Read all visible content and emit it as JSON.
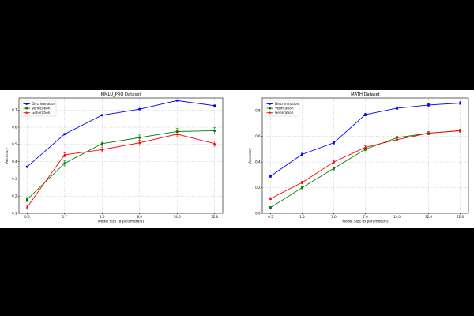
{
  "chart_data": [
    {
      "type": "line",
      "title": "MMLU_PRO Dataset",
      "xlabel": "Model Size (B parameters)",
      "ylabel": "Accuracy",
      "categories": [
        "0.6",
        "1.7",
        "4.0",
        "8.0",
        "14.0",
        "32.0"
      ],
      "ylim": [
        0.1,
        0.77
      ],
      "yticks": [
        "0.1",
        "0.2",
        "0.3",
        "0.4",
        "0.5",
        "0.6",
        "0.7"
      ],
      "grid": true,
      "legend": "top-left",
      "series": [
        {
          "name": "Discrimination",
          "color": "#0000ff",
          "marker": "circle",
          "values": [
            0.37,
            0.56,
            0.67,
            0.705,
            0.755,
            0.725
          ],
          "errors": [
            0.004,
            0.004,
            0.004,
            0.004,
            0.004,
            0.004
          ]
        },
        {
          "name": "Verification",
          "color": "#008000",
          "marker": "square",
          "values": [
            0.18,
            0.39,
            0.505,
            0.54,
            0.575,
            0.58
          ],
          "errors": [
            0.012,
            0.015,
            0.015,
            0.015,
            0.018,
            0.018
          ]
        },
        {
          "name": "Generation",
          "color": "#ff0000",
          "marker": "triangle",
          "values": [
            0.135,
            0.44,
            0.47,
            0.51,
            0.56,
            0.505
          ],
          "errors": [
            0.01,
            0.012,
            0.012,
            0.015,
            0.015,
            0.015
          ]
        }
      ]
    },
    {
      "type": "line",
      "title": "MATH Dataset",
      "xlabel": "Model Size (B parameters)",
      "ylabel": "Accuracy",
      "categories": [
        "0.5",
        "1.5",
        "3.0",
        "7.0",
        "14.0",
        "32.0",
        "72.0"
      ],
      "ylim": [
        0.0,
        0.9
      ],
      "yticks": [
        "0.0",
        "0.2",
        "0.4",
        "0.6",
        "0.8"
      ],
      "grid": true,
      "legend": "top-left",
      "series": [
        {
          "name": "Discrimination",
          "color": "#0000ff",
          "marker": "circle",
          "values": [
            0.29,
            0.46,
            0.55,
            0.77,
            0.82,
            0.845,
            0.86
          ],
          "errors": [
            0.01,
            0.01,
            0.01,
            0.01,
            0.01,
            0.01,
            0.01
          ]
        },
        {
          "name": "Verification",
          "color": "#008000",
          "marker": "square",
          "values": [
            0.045,
            0.2,
            0.35,
            0.5,
            0.59,
            0.625,
            0.645
          ],
          "errors": [
            0.008,
            0.01,
            0.012,
            0.012,
            0.012,
            0.012,
            0.012
          ]
        },
        {
          "name": "Generation",
          "color": "#ff0000",
          "marker": "triangle",
          "values": [
            0.115,
            0.24,
            0.4,
            0.515,
            0.575,
            0.625,
            0.645
          ],
          "errors": [
            0.008,
            0.01,
            0.012,
            0.012,
            0.012,
            0.012,
            0.012
          ]
        }
      ]
    }
  ]
}
